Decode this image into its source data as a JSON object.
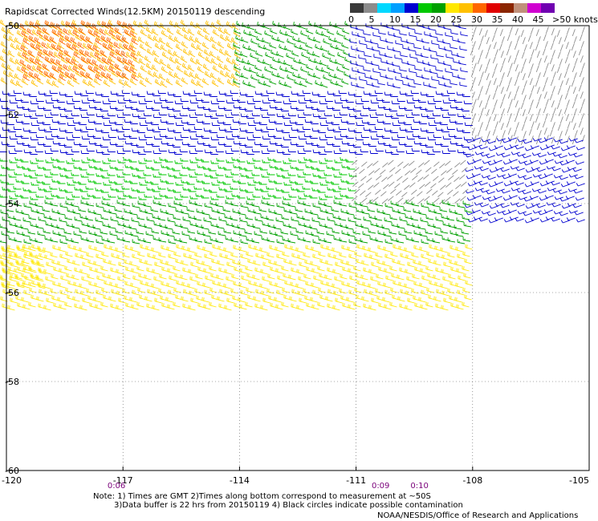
{
  "title": "Rapidscat Corrected Winds(12.5KM) 20150119 descending",
  "legend": {
    "unit_label": ">50 knots",
    "ticks": [
      "0",
      "5",
      "10",
      "15",
      "20",
      "25",
      "30",
      "35",
      "40",
      "45"
    ],
    "colors": [
      "#3a3a3a",
      "#8c8c8c",
      "#00d8ff",
      "#00a0ff",
      "#0000d0",
      "#00c800",
      "#00a000",
      "#ffe800",
      "#ffc000",
      "#ff6600",
      "#e00000",
      "#8b2500",
      "#c0907a",
      "#d000d0",
      "#7000b0"
    ]
  },
  "chart_data": {
    "type": "wind_barb_map",
    "lon_range": [
      -120,
      -105
    ],
    "lat_range": [
      -60,
      -50
    ],
    "x_ticks": [
      "-120",
      "-117",
      "-114",
      "-111",
      "-108",
      "-105"
    ],
    "y_ticks": [
      "-50",
      "-52",
      "-54",
      "-56",
      "-58",
      "-60"
    ],
    "time_labels": [
      {
        "text": "0:06",
        "lon": -117.4
      },
      {
        "text": "0:09",
        "lon": -110.6
      },
      {
        "text": "0:10",
        "lon": -109.6
      }
    ],
    "wind_regions": [
      {
        "lon": [
          -120,
          -114
        ],
        "lat": [
          -50.0,
          -51.5
        ],
        "speed_knots": 27,
        "direction_deg": 300
      },
      {
        "lon": [
          -119.5,
          -116.5
        ],
        "lat": [
          -50.0,
          -51.2
        ],
        "speed_knots": 33,
        "direction_deg": 300
      },
      {
        "lon": [
          -114,
          -111
        ],
        "lat": [
          -50.0,
          -51.5
        ],
        "speed_knots": 18,
        "direction_deg": 290
      },
      {
        "lon": [
          -111,
          -108
        ],
        "lat": [
          -50.0,
          -51.5
        ],
        "speed_knots": 10,
        "direction_deg": 280
      },
      {
        "lon": [
          -108,
          -105
        ],
        "lat": [
          -50.0,
          -52.5
        ],
        "speed_knots": 3,
        "direction_deg": 200
      },
      {
        "lon": [
          -120,
          -108
        ],
        "lat": [
          -51.5,
          -53.0
        ],
        "speed_knots": 10,
        "direction_deg": 270
      },
      {
        "lon": [
          -108,
          -105
        ],
        "lat": [
          -52.5,
          -54.5
        ],
        "speed_knots": 10,
        "direction_deg": 250
      },
      {
        "lon": [
          -120,
          -111
        ],
        "lat": [
          -53.0,
          -54.0
        ],
        "speed_knots": 15,
        "direction_deg": 270
      },
      {
        "lon": [
          -111,
          -108
        ],
        "lat": [
          -53.0,
          -54.0
        ],
        "speed_knots": 3,
        "direction_deg": 230
      },
      {
        "lon": [
          -120,
          -108
        ],
        "lat": [
          -54.0,
          -55.0
        ],
        "speed_knots": 18,
        "direction_deg": 280
      },
      {
        "lon": [
          -120,
          -108
        ],
        "lat": [
          -55.0,
          -56.5
        ],
        "speed_knots": 20,
        "direction_deg": 285
      },
      {
        "lon": [
          -120,
          -119
        ],
        "lat": [
          -55.0,
          -56.0
        ],
        "speed_knots": 24,
        "direction_deg": 285
      }
    ]
  },
  "notes": {
    "line1": "Note: 1) Times are GMT 2)Times along bottom correspond to measurement at ~50S",
    "line2": "3)Data buffer is 22 hrs from 20150119 4) Black circles indicate possible contamination"
  },
  "credit": "NOAA/NESDIS/Office of Research and Applications"
}
